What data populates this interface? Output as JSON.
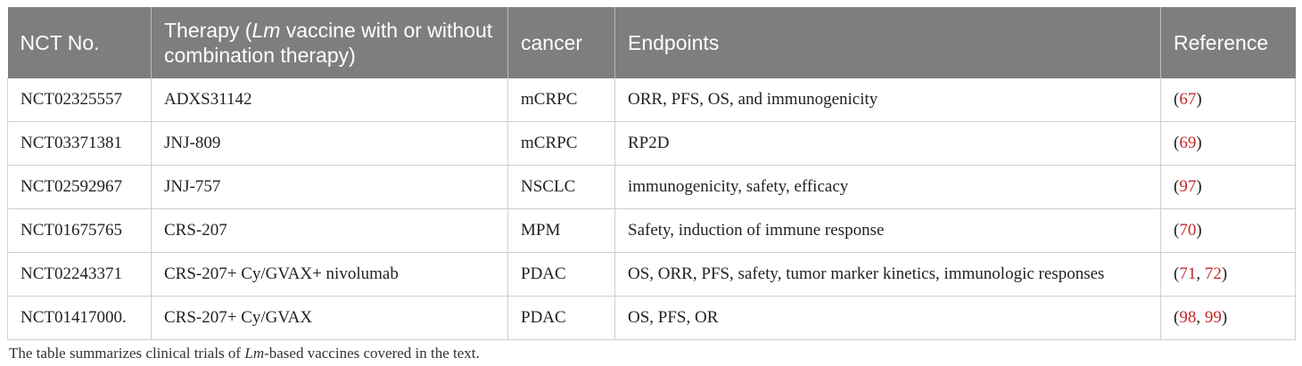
{
  "table": {
    "headers": {
      "nct": "NCT No.",
      "therapy_pre": "Therapy (",
      "therapy_lm": "Lm",
      "therapy_post": " vaccine with or without combination therapy)",
      "cancer": "cancer",
      "endpoints": "Endpoints",
      "reference": "Reference"
    },
    "rows": [
      {
        "nct": "NCT02325557",
        "therapy": "ADXS31142",
        "cancer": "mCRPC",
        "endpoints": "ORR, PFS, OS, and immunogenicity",
        "refs": [
          "67"
        ]
      },
      {
        "nct": "NCT03371381",
        "therapy": "JNJ-809",
        "cancer": "mCRPC",
        "endpoints": "RP2D",
        "refs": [
          "69"
        ]
      },
      {
        "nct": "NCT02592967",
        "therapy": "JNJ-757",
        "cancer": "NSCLC",
        "endpoints": "immunogenicity, safety, efficacy",
        "refs": [
          "97"
        ]
      },
      {
        "nct": "NCT01675765",
        "therapy": "CRS-207",
        "cancer": "MPM",
        "endpoints": "Safety, induction of immune response",
        "refs": [
          "70"
        ]
      },
      {
        "nct": "NCT02243371",
        "therapy": "CRS-207+ Cy/GVAX+ nivolumab",
        "cancer": "PDAC",
        "endpoints": "OS, ORR, PFS, safety, tumor marker kinetics, immunologic responses",
        "refs": [
          "71",
          "72"
        ]
      },
      {
        "nct": "NCT01417000.",
        "therapy": "CRS-207+ Cy/GVAX",
        "cancer": "PDAC",
        "endpoints": "OS, PFS, OR",
        "refs": [
          "98",
          "99"
        ]
      }
    ],
    "ref_open": "(",
    "ref_sep": ", ",
    "ref_close": ")"
  },
  "caption": {
    "pre": "The table summarizes clinical trials of ",
    "lm": "Lm",
    "post": "-based vaccines covered in the text."
  },
  "colors": {
    "header_bg": "#7e7e7e",
    "reference_link": "#c62828"
  }
}
